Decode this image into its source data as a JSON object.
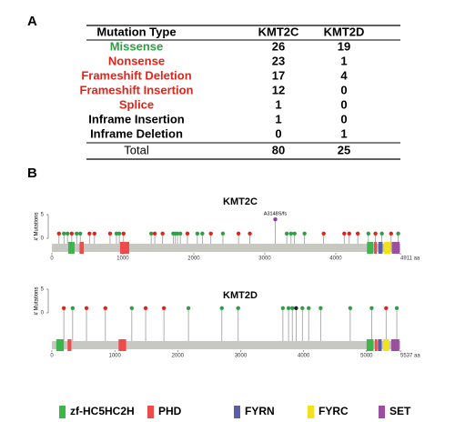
{
  "panel_a": {
    "label": "A",
    "header": [
      "Mutation Type",
      "KMT2C",
      "KMT2D"
    ],
    "rows": [
      {
        "label": "Missense",
        "color": "#2ea043",
        "kmt2c": 26,
        "kmt2d": 19
      },
      {
        "label": "Nonsense",
        "color": "#e2231a",
        "kmt2c": 23,
        "kmt2d": 1
      },
      {
        "label": "Frameshift Deletion",
        "color": "#e2231a",
        "kmt2c": 17,
        "kmt2d": 4
      },
      {
        "label": "Frameshift Insertion",
        "color": "#e2231a",
        "kmt2c": 12,
        "kmt2d": 0
      },
      {
        "label": "Splice",
        "color": "#e2231a",
        "kmt2c": 1,
        "kmt2d": 0
      },
      {
        "label": "Inframe Insertion",
        "color": "#000000",
        "kmt2c": 1,
        "kmt2d": 0
      },
      {
        "label": "Inframe Deletion",
        "color": "#000000",
        "kmt2c": 0,
        "kmt2d": 1
      }
    ],
    "total": {
      "label": "Total",
      "kmt2c": 80,
      "kmt2d": 25
    }
  },
  "panel_b": {
    "label": "B",
    "plots": [
      {
        "title": "KMT2C",
        "ylabel": "# Mutations",
        "ylim": [
          0,
          5
        ],
        "yticks": [
          0,
          5
        ],
        "xlim": [
          0,
          4911
        ],
        "xticks": [
          0,
          1000,
          2000,
          3000,
          4000,
          {
            "value": 4911,
            "label": "4911 aa"
          }
        ],
        "domains": [
          {
            "start": 230,
            "end": 320,
            "color": "#3cb54a"
          },
          {
            "start": 390,
            "end": 450,
            "color": "#ef4b4b"
          },
          {
            "start": 960,
            "end": 1090,
            "color": "#ef4b4b"
          },
          {
            "start": 4440,
            "end": 4530,
            "color": "#3cb54a"
          },
          {
            "start": 4540,
            "end": 4580,
            "color": "#ef4b4b"
          },
          {
            "start": 4600,
            "end": 4660,
            "color": "#5b5ea6"
          },
          {
            "start": 4680,
            "end": 4770,
            "color": "#f2e11b"
          },
          {
            "start": 4790,
            "end": 4900,
            "color": "#9b4f9f"
          }
        ],
        "mutations": [
          {
            "pos": 100,
            "count": 1,
            "color": "#e2231a"
          },
          {
            "pos": 170,
            "count": 1,
            "color": "#2ea043"
          },
          {
            "pos": 220,
            "count": 1,
            "color": "#2ea043"
          },
          {
            "pos": 280,
            "count": 1,
            "color": "#e2231a"
          },
          {
            "pos": 350,
            "count": 1,
            "color": "#2ea043"
          },
          {
            "pos": 400,
            "count": 1,
            "color": "#2ea043"
          },
          {
            "pos": 530,
            "count": 1,
            "color": "#e2231a"
          },
          {
            "pos": 600,
            "count": 1,
            "color": "#e2231a"
          },
          {
            "pos": 820,
            "count": 1,
            "color": "#e2231a"
          },
          {
            "pos": 910,
            "count": 1,
            "color": "#2ea043"
          },
          {
            "pos": 950,
            "count": 1,
            "color": "#2ea043"
          },
          {
            "pos": 1010,
            "count": 1,
            "color": "#e2231a"
          },
          {
            "pos": 1400,
            "count": 1,
            "color": "#2ea043"
          },
          {
            "pos": 1450,
            "count": 1,
            "color": "#e2231a"
          },
          {
            "pos": 1560,
            "count": 1,
            "color": "#e2231a"
          },
          {
            "pos": 1710,
            "count": 1,
            "color": "#2ea043"
          },
          {
            "pos": 1740,
            "count": 1,
            "color": "#2ea043"
          },
          {
            "pos": 1770,
            "count": 1,
            "color": "#2ea043"
          },
          {
            "pos": 1810,
            "count": 1,
            "color": "#2ea043"
          },
          {
            "pos": 1910,
            "count": 1,
            "color": "#e2231a"
          },
          {
            "pos": 2050,
            "count": 1,
            "color": "#2ea043"
          },
          {
            "pos": 2120,
            "count": 1,
            "color": "#2ea043"
          },
          {
            "pos": 2240,
            "count": 1,
            "color": "#e2231a"
          },
          {
            "pos": 2410,
            "count": 1,
            "color": "#2ea043"
          },
          {
            "pos": 2630,
            "count": 1,
            "color": "#e2231a"
          },
          {
            "pos": 2790,
            "count": 1,
            "color": "#e2231a"
          },
          {
            "pos": 3148,
            "count": 4,
            "color": "#8e3d9e",
            "label": "A3148S/fs"
          },
          {
            "pos": 3310,
            "count": 1,
            "color": "#2ea043"
          },
          {
            "pos": 3370,
            "count": 1,
            "color": "#2ea043"
          },
          {
            "pos": 3420,
            "count": 1,
            "color": "#2ea043"
          },
          {
            "pos": 3560,
            "count": 1,
            "color": "#2ea043"
          },
          {
            "pos": 3830,
            "count": 1,
            "color": "#e2231a"
          },
          {
            "pos": 4120,
            "count": 1,
            "color": "#e2231a"
          },
          {
            "pos": 4190,
            "count": 1,
            "color": "#e2231a"
          },
          {
            "pos": 4310,
            "count": 1,
            "color": "#e2231a"
          },
          {
            "pos": 4460,
            "count": 1,
            "color": "#2ea043"
          },
          {
            "pos": 4560,
            "count": 1,
            "color": "#e2231a"
          },
          {
            "pos": 4650,
            "count": 1,
            "color": "#2ea043"
          },
          {
            "pos": 4780,
            "count": 1,
            "color": "#e2231a"
          },
          {
            "pos": 4880,
            "count": 1,
            "color": "#2ea043"
          }
        ]
      },
      {
        "title": "KMT2D",
        "ylabel": "# Mutations",
        "ylim": [
          0,
          5
        ],
        "yticks": [
          0,
          5
        ],
        "xlim": [
          0,
          5537
        ],
        "xticks": [
          0,
          1000,
          2000,
          3000,
          4000,
          5000,
          {
            "value": 5537,
            "label": "5537 aa"
          }
        ],
        "domains": [
          {
            "start": 70,
            "end": 190,
            "color": "#3cb54a"
          },
          {
            "start": 250,
            "end": 310,
            "color": "#ef4b4b"
          },
          {
            "start": 1060,
            "end": 1180,
            "color": "#ef4b4b"
          },
          {
            "start": 5000,
            "end": 5110,
            "color": "#3cb54a"
          },
          {
            "start": 5130,
            "end": 5170,
            "color": "#ef4b4b"
          },
          {
            "start": 5180,
            "end": 5240,
            "color": "#5b5ea6"
          },
          {
            "start": 5260,
            "end": 5360,
            "color": "#f2e11b"
          },
          {
            "start": 5390,
            "end": 5520,
            "color": "#9b4f9f"
          }
        ],
        "mutations": [
          {
            "pos": 190,
            "count": 1,
            "color": "#e2231a"
          },
          {
            "pos": 330,
            "count": 1,
            "color": "#2ea043"
          },
          {
            "pos": 550,
            "count": 1,
            "color": "#e2231a"
          },
          {
            "pos": 850,
            "count": 1,
            "color": "#e2231a"
          },
          {
            "pos": 1270,
            "count": 1,
            "color": "#2ea043"
          },
          {
            "pos": 1490,
            "count": 1,
            "color": "#e2231a"
          },
          {
            "pos": 1780,
            "count": 1,
            "color": "#e2231a"
          },
          {
            "pos": 2170,
            "count": 1,
            "color": "#2ea043"
          },
          {
            "pos": 2700,
            "count": 1,
            "color": "#2ea043"
          },
          {
            "pos": 2960,
            "count": 1,
            "color": "#2ea043"
          },
          {
            "pos": 3670,
            "count": 1,
            "color": "#2ea043"
          },
          {
            "pos": 3760,
            "count": 1,
            "color": "#2ea043"
          },
          {
            "pos": 3820,
            "count": 1,
            "color": "#2ea043"
          },
          {
            "pos": 3880,
            "count": 1,
            "color": "#222222"
          },
          {
            "pos": 3980,
            "count": 1,
            "color": "#2ea043"
          },
          {
            "pos": 4080,
            "count": 1,
            "color": "#2ea043"
          },
          {
            "pos": 4270,
            "count": 1,
            "color": "#2ea043"
          },
          {
            "pos": 4740,
            "count": 1,
            "color": "#2ea043"
          },
          {
            "pos": 5080,
            "count": 1,
            "color": "#2ea043"
          },
          {
            "pos": 5310,
            "count": 1,
            "color": "#e2231a"
          },
          {
            "pos": 5480,
            "count": 1,
            "color": "#2ea043"
          }
        ]
      }
    ],
    "legend": [
      {
        "name": "zf-HC5HC2H",
        "color": "#3cb54a"
      },
      {
        "name": "PHD",
        "color": "#ef4b4b"
      },
      {
        "name": "FYRN",
        "color": "#5b5ea6"
      },
      {
        "name": "FYRC",
        "color": "#f2e11b"
      },
      {
        "name": "SET",
        "color": "#9b4f9f"
      }
    ]
  }
}
